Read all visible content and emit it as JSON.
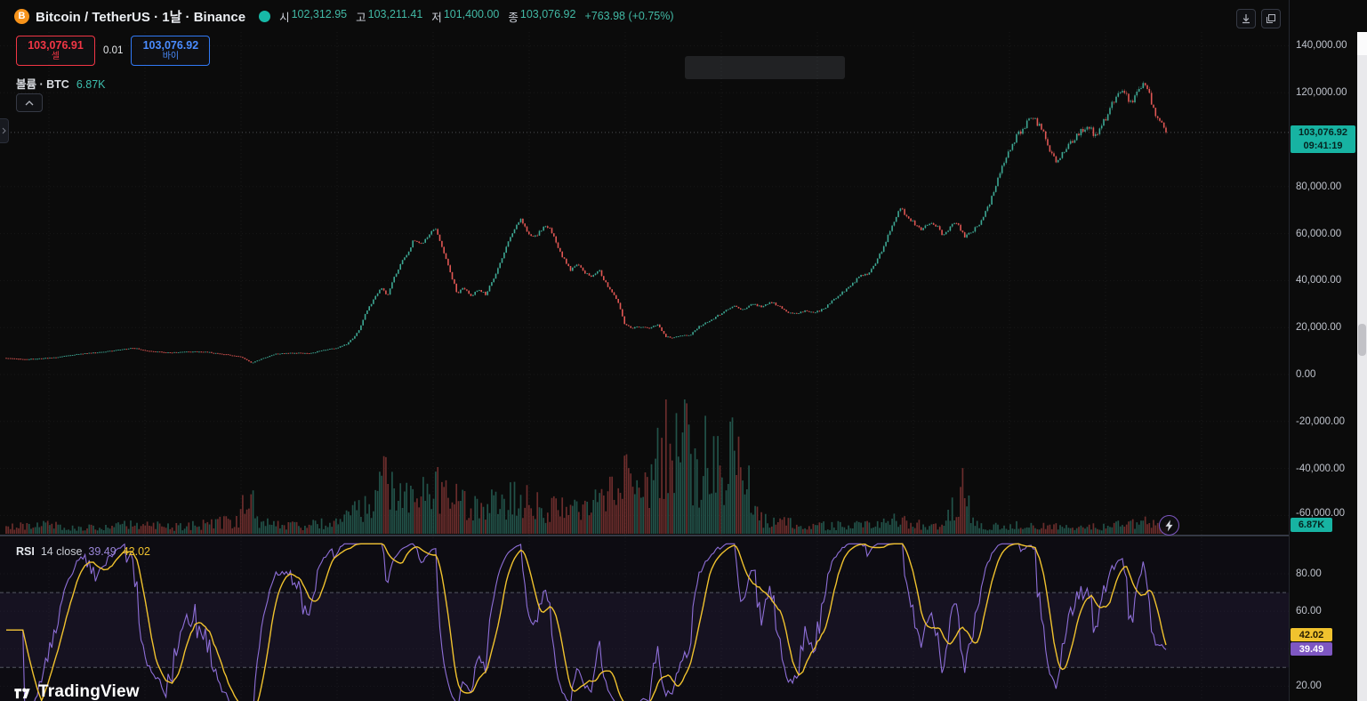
{
  "palette": {
    "bg": "#0b0b0b",
    "up": "#3da894",
    "down": "#e15754",
    "axis_text": "#bfc3cc",
    "teal": "#17b3a2",
    "red": "#f23645",
    "blue": "#3179f5",
    "purple": "#8e6fd8",
    "yellow": "#f0c22e"
  },
  "topbar": {
    "symbol_title": "Bitcoin / TetherUS · 1날 · Binance",
    "ohlc": [
      {
        "label": "시",
        "value": "102,312.95"
      },
      {
        "label": "고",
        "value": "103,211.41"
      },
      {
        "label": "저",
        "value": "101,400.00"
      },
      {
        "label": "종",
        "value": "103,076.92"
      }
    ],
    "change": "+763.98 (+0.75%)"
  },
  "trade_widget": {
    "sell_price": "103,076.91",
    "sell_label": "셀",
    "quantity": "0.01",
    "buy_price": "103,076.92",
    "buy_label": "바이"
  },
  "volume_legend": {
    "label": "볼륨 · BTC",
    "value": "6.87K"
  },
  "price_axis": {
    "ticks": [
      {
        "text": "140,000.00",
        "value": 140000
      },
      {
        "text": "120,000.00",
        "value": 120000
      },
      {
        "text": "80,000.00",
        "value": 80000
      },
      {
        "text": "60,000.00",
        "value": 60000
      },
      {
        "text": "40,000.00",
        "value": 40000
      },
      {
        "text": "20,000.00",
        "value": 20000
      },
      {
        "text": "0.00",
        "value": 0
      },
      {
        "text": "-20,000.00",
        "value": -20000
      },
      {
        "text": "-40,000.00",
        "value": -40000
      },
      {
        "text": "-60,000.00",
        "value": -60000
      }
    ],
    "current_price_badge": {
      "price": "103,076.92",
      "countdown": "09:41:19"
    },
    "volume_badge": "6.87K"
  },
  "rsi_pane": {
    "legend": {
      "title": "RSI",
      "params": "14 close",
      "line_value": "39.49",
      "ma_value": "42.02"
    },
    "axis_ticks": [
      {
        "text": "80.00",
        "value": 80
      },
      {
        "text": "60.00",
        "value": 60
      },
      {
        "text": "20.00",
        "value": 20
      }
    ],
    "badges": {
      "ma": "42.02",
      "line": "39.49"
    },
    "bands": {
      "upper": 70,
      "lower": 30
    }
  },
  "footer": {
    "logo_text": "TradingView"
  },
  "icons": {
    "topbar_right": [
      "download-icon",
      "restore-window-icon"
    ],
    "collapse": "chevron-up-icon",
    "lightning": "quick-trade-icon",
    "left_handle": "expand-panel-icon"
  },
  "chart_data": {
    "type": "candlestick+volume+rsi",
    "symbol": "Bitcoin / TetherUS",
    "interval": "1날 (1D)",
    "exchange": "Binance",
    "ohlc_readout": {
      "open": 102312.95,
      "high": 103211.41,
      "low": 101400.0,
      "close": 103076.92,
      "change": 763.98,
      "change_pct": 0.75
    },
    "volume_readout": "6.87K BTC",
    "rsi_readout": {
      "rsi": 39.49,
      "rsi_ma": 42.02,
      "length": 14,
      "source": "close",
      "upper_band": 70,
      "lower_band": 30
    },
    "price_axis_range": [
      -68500,
      143000
    ],
    "last_close": 103076.92,
    "price_anchors": [
      [
        0,
        7200
      ],
      [
        30,
        6500
      ],
      [
        60,
        7200
      ],
      [
        90,
        8800
      ],
      [
        120,
        9800
      ],
      [
        150,
        11300
      ],
      [
        165,
        10200
      ],
      [
        190,
        9300
      ],
      [
        215,
        9800
      ],
      [
        235,
        9500
      ],
      [
        255,
        8500
      ],
      [
        270,
        7600
      ],
      [
        283,
        4900
      ],
      [
        295,
        6800
      ],
      [
        310,
        8800
      ],
      [
        330,
        9200
      ],
      [
        350,
        9100
      ],
      [
        365,
        10500
      ],
      [
        380,
        11500
      ],
      [
        390,
        13000
      ],
      [
        398,
        15800
      ],
      [
        404,
        19000
      ],
      [
        412,
        27000
      ],
      [
        420,
        32000
      ],
      [
        428,
        37000
      ],
      [
        436,
        33500
      ],
      [
        444,
        42000
      ],
      [
        452,
        48000
      ],
      [
        458,
        52000
      ],
      [
        466,
        57500
      ],
      [
        474,
        55000
      ],
      [
        482,
        59500
      ],
      [
        490,
        61500
      ],
      [
        498,
        53000
      ],
      [
        506,
        44000
      ],
      [
        514,
        34500
      ],
      [
        522,
        37000
      ],
      [
        530,
        33000
      ],
      [
        538,
        36500
      ],
      [
        546,
        34000
      ],
      [
        554,
        40000
      ],
      [
        562,
        47500
      ],
      [
        570,
        56000
      ],
      [
        578,
        62500
      ],
      [
        586,
        66500
      ],
      [
        594,
        60000
      ],
      [
        602,
        58500
      ],
      [
        610,
        62000
      ],
      [
        618,
        63500
      ],
      [
        626,
        55000
      ],
      [
        634,
        49000
      ],
      [
        642,
        44500
      ],
      [
        650,
        47500
      ],
      [
        658,
        43500
      ],
      [
        666,
        41500
      ],
      [
        674,
        44000
      ],
      [
        682,
        38500
      ],
      [
        690,
        34500
      ],
      [
        697,
        28500
      ],
      [
        702,
        21500
      ],
      [
        710,
        19800
      ],
      [
        720,
        20300
      ],
      [
        730,
        19500
      ],
      [
        740,
        21500
      ],
      [
        748,
        16200
      ],
      [
        756,
        15800
      ],
      [
        766,
        16500
      ],
      [
        776,
        16800
      ],
      [
        786,
        20500
      ],
      [
        796,
        22500
      ],
      [
        806,
        24800
      ],
      [
        816,
        27500
      ],
      [
        826,
        29000
      ],
      [
        836,
        27500
      ],
      [
        846,
        30200
      ],
      [
        856,
        29000
      ],
      [
        866,
        30800
      ],
      [
        876,
        29300
      ],
      [
        886,
        26300
      ],
      [
        896,
        26000
      ],
      [
        906,
        27300
      ],
      [
        916,
        26500
      ],
      [
        926,
        27800
      ],
      [
        936,
        31500
      ],
      [
        946,
        34500
      ],
      [
        956,
        37500
      ],
      [
        966,
        41500
      ],
      [
        976,
        43000
      ],
      [
        986,
        48000
      ],
      [
        996,
        57000
      ],
      [
        1004,
        64000
      ],
      [
        1012,
        70500
      ],
      [
        1020,
        67500
      ],
      [
        1028,
        64500
      ],
      [
        1036,
        62000
      ],
      [
        1044,
        64500
      ],
      [
        1052,
        63500
      ],
      [
        1060,
        59500
      ],
      [
        1068,
        62500
      ],
      [
        1076,
        65500
      ],
      [
        1084,
        58500
      ],
      [
        1092,
        61000
      ],
      [
        1100,
        63000
      ],
      [
        1106,
        67000
      ],
      [
        1112,
        72500
      ],
      [
        1118,
        78500
      ],
      [
        1124,
        85000
      ],
      [
        1130,
        91500
      ],
      [
        1136,
        96000
      ],
      [
        1142,
        100500
      ],
      [
        1148,
        104000
      ],
      [
        1154,
        106500
      ],
      [
        1160,
        109500
      ],
      [
        1166,
        107500
      ],
      [
        1172,
        103500
      ],
      [
        1178,
        97500
      ],
      [
        1184,
        92500
      ],
      [
        1190,
        91000
      ],
      [
        1196,
        94500
      ],
      [
        1202,
        97500
      ],
      [
        1208,
        100500
      ],
      [
        1214,
        103000
      ],
      [
        1220,
        105500
      ],
      [
        1226,
        104500
      ],
      [
        1232,
        101500
      ],
      [
        1238,
        105500
      ],
      [
        1244,
        110000
      ],
      [
        1250,
        114500
      ],
      [
        1256,
        118500
      ],
      [
        1262,
        121500
      ],
      [
        1268,
        118000
      ],
      [
        1274,
        115500
      ],
      [
        1280,
        120500
      ],
      [
        1286,
        124000
      ],
      [
        1292,
        119000
      ],
      [
        1297,
        113500
      ],
      [
        1302,
        109000
      ],
      [
        1306,
        106000
      ],
      [
        1311,
        103077
      ]
    ],
    "volume_anchors": [
      [
        0,
        0.05
      ],
      [
        40,
        0.1
      ],
      [
        80,
        0.05
      ],
      [
        150,
        0.08
      ],
      [
        200,
        0.06
      ],
      [
        270,
        0.12
      ],
      [
        281,
        0.52
      ],
      [
        290,
        0.1
      ],
      [
        330,
        0.07
      ],
      [
        380,
        0.1
      ],
      [
        405,
        0.22
      ],
      [
        420,
        0.32
      ],
      [
        432,
        0.5
      ],
      [
        445,
        0.28
      ],
      [
        470,
        0.3
      ],
      [
        487,
        0.38
      ],
      [
        500,
        0.45
      ],
      [
        515,
        0.3
      ],
      [
        540,
        0.22
      ],
      [
        560,
        0.28
      ],
      [
        585,
        0.3
      ],
      [
        610,
        0.22
      ],
      [
        640,
        0.2
      ],
      [
        660,
        0.25
      ],
      [
        680,
        0.28
      ],
      [
        700,
        0.48
      ],
      [
        715,
        0.4
      ],
      [
        730,
        0.55
      ],
      [
        742,
        0.65
      ],
      [
        750,
        0.8
      ],
      [
        760,
        0.7
      ],
      [
        768,
        1.0
      ],
      [
        775,
        0.6
      ],
      [
        785,
        0.55
      ],
      [
        795,
        0.7
      ],
      [
        805,
        0.6
      ],
      [
        815,
        0.55
      ],
      [
        825,
        0.75
      ],
      [
        832,
        0.95
      ],
      [
        840,
        0.45
      ],
      [
        850,
        0.18
      ],
      [
        860,
        0.12
      ],
      [
        880,
        0.1
      ],
      [
        900,
        0.08
      ],
      [
        930,
        0.07
      ],
      [
        960,
        0.08
      ],
      [
        990,
        0.1
      ],
      [
        1010,
        0.12
      ],
      [
        1040,
        0.08
      ],
      [
        1060,
        0.07
      ],
      [
        1087,
        0.45
      ],
      [
        1095,
        0.08
      ],
      [
        1120,
        0.07
      ],
      [
        1150,
        0.08
      ],
      [
        1180,
        0.06
      ],
      [
        1210,
        0.06
      ],
      [
        1240,
        0.07
      ],
      [
        1270,
        0.08
      ],
      [
        1290,
        0.1
      ],
      [
        1311,
        0.07
      ]
    ]
  }
}
